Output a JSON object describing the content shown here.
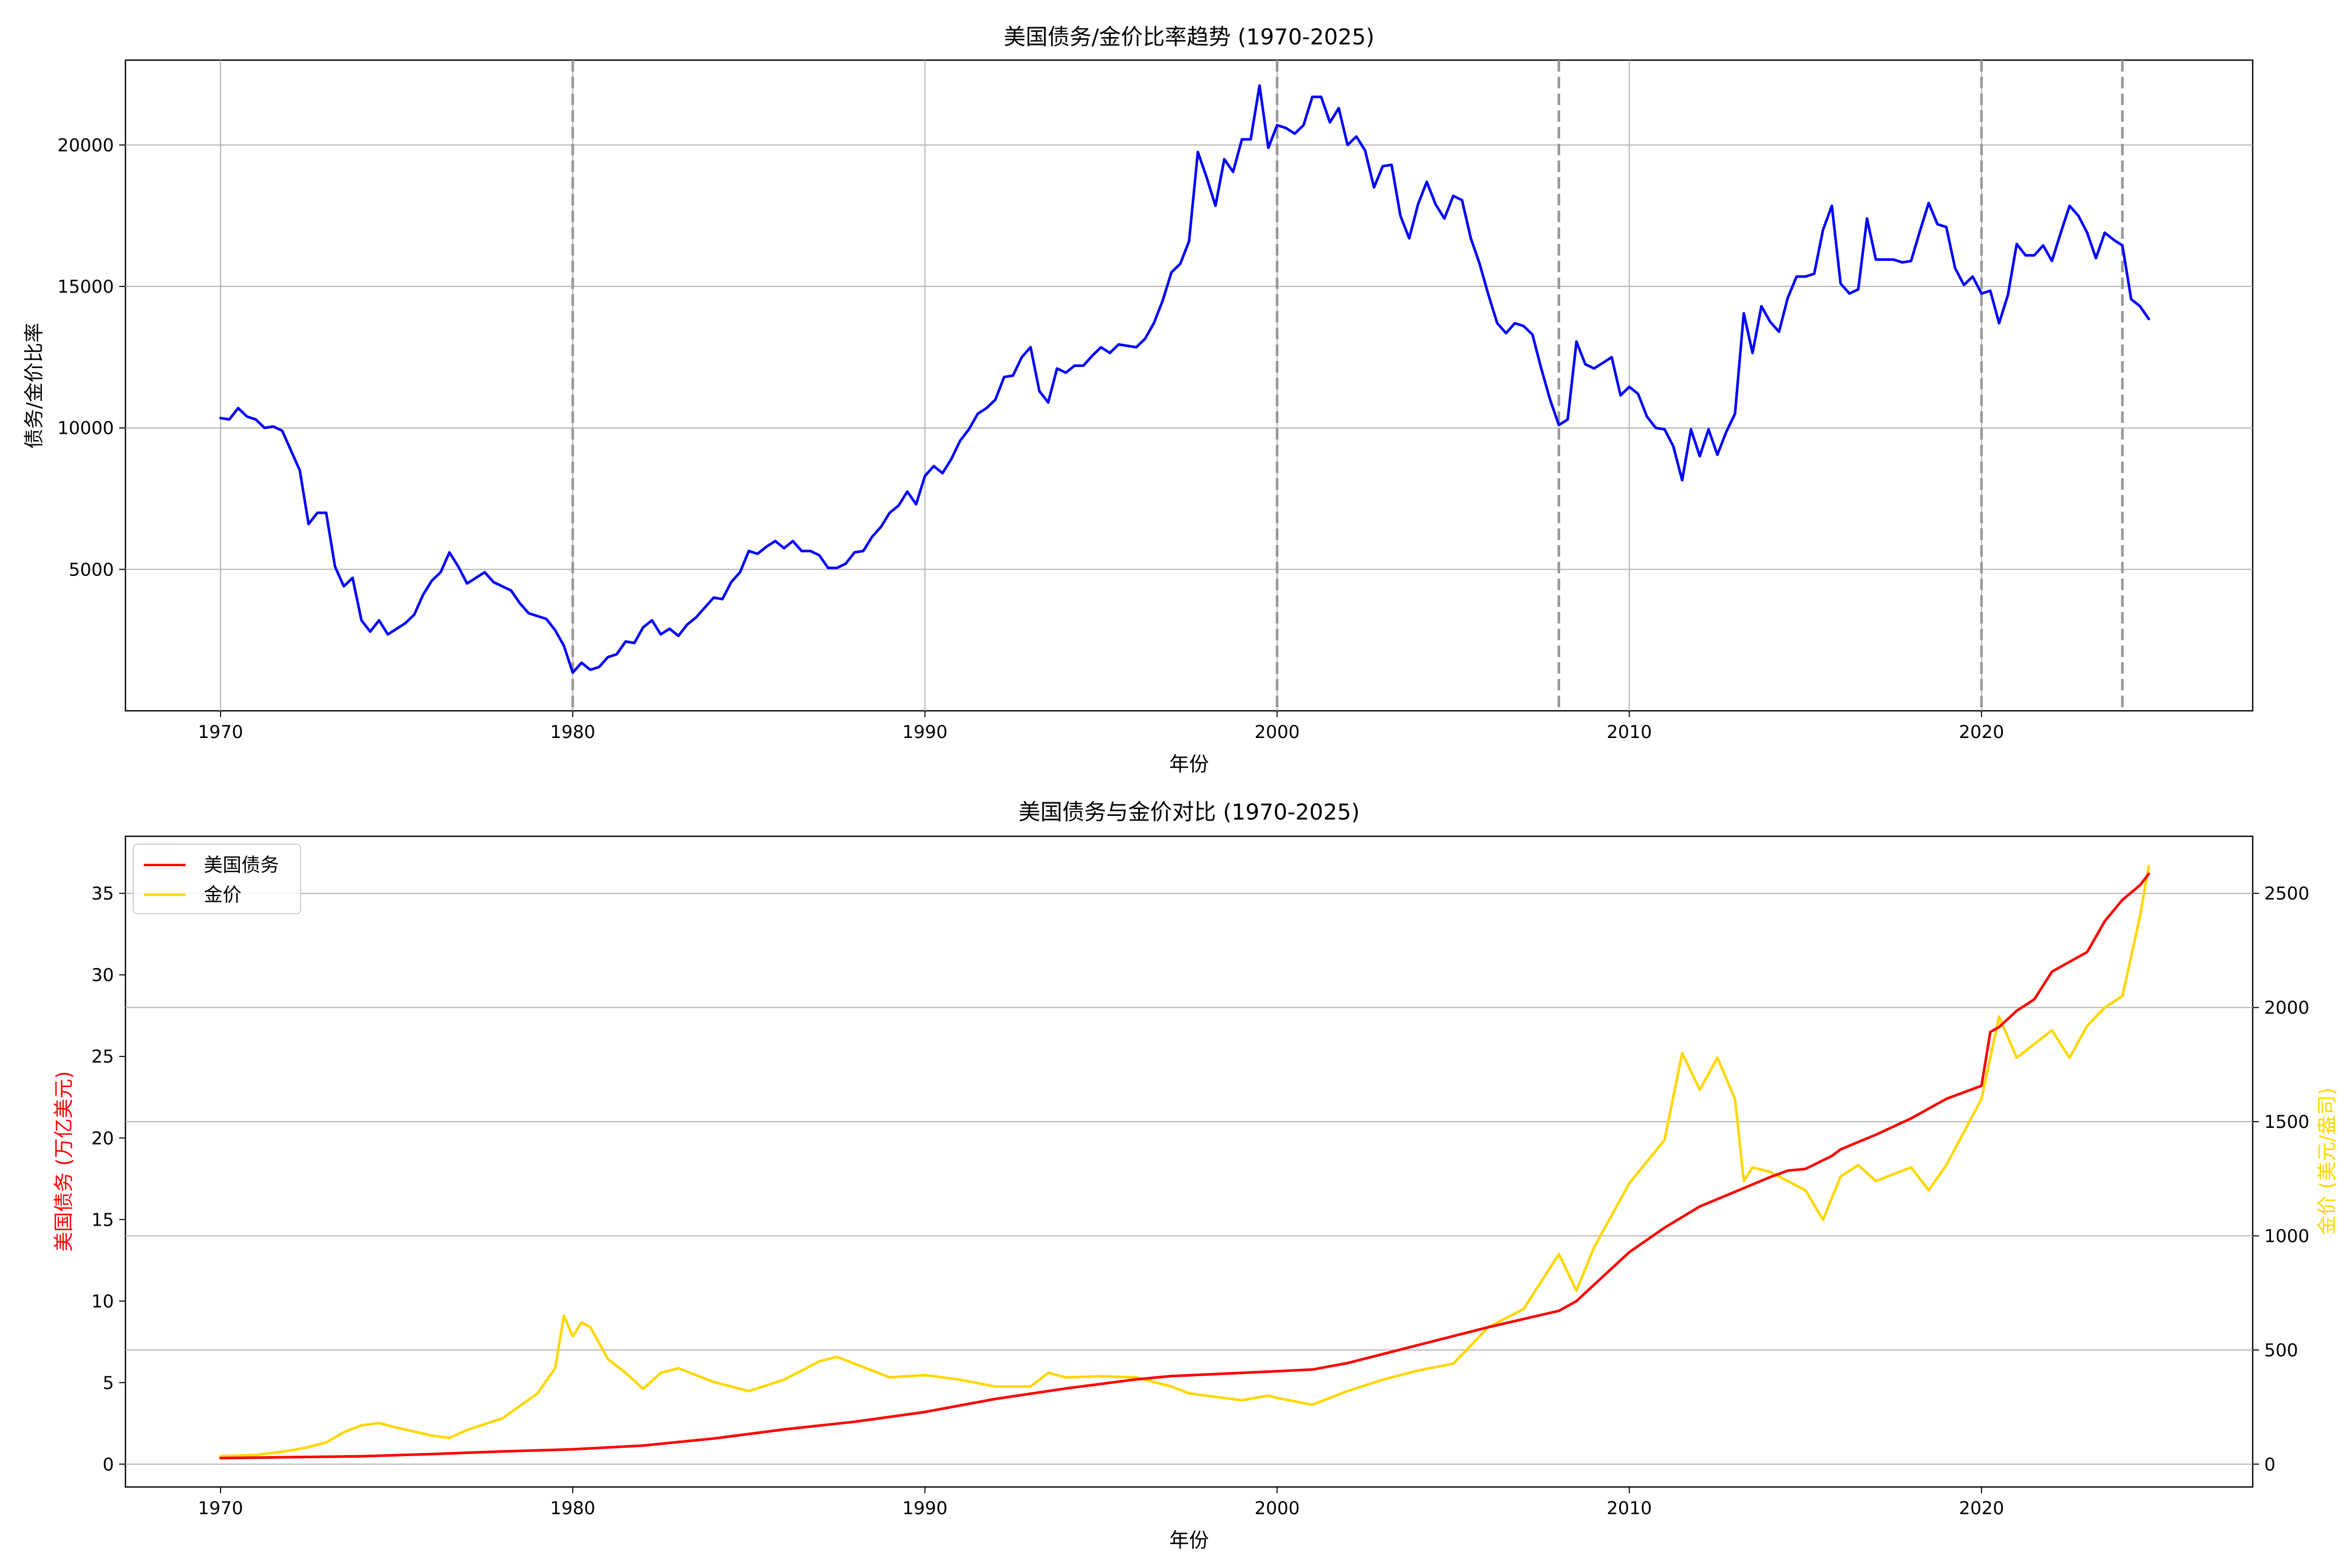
{
  "figure": {
    "background": "#ffffff"
  },
  "chart_data": [
    {
      "type": "line",
      "title": "美国债务/金价比率趋势 (1970-2025)",
      "xlabel": "年份",
      "ylabel": "债务/金价比率",
      "xlim": [
        1967.3,
        2027.7
      ],
      "ylim": [
        0,
        23000
      ],
      "x_ticks": [
        1970,
        1980,
        1990,
        2000,
        2010,
        2020
      ],
      "y_ticks": [
        5000,
        10000,
        15000,
        20000
      ],
      "grid": true,
      "vlines": [
        1980,
        2000,
        2008,
        2020,
        2024
      ],
      "vline_color": "#999999",
      "series": [
        {
          "color": "#0000ff",
          "x": [
            1970,
            1970.25,
            1970.5,
            1970.75,
            1971,
            1971.25,
            1971.5,
            1971.75,
            1972,
            1972.25,
            1972.5,
            1972.75,
            1973,
            1973.25,
            1973.5,
            1973.75,
            1974,
            1974.25,
            1974.5,
            1974.75,
            1975,
            1975.25,
            1975.5,
            1975.75,
            1976,
            1976.25,
            1976.5,
            1976.75,
            1977,
            1977.25,
            1977.5,
            1977.75,
            1978,
            1978.25,
            1978.5,
            1978.75,
            1979,
            1979.25,
            1979.5,
            1979.75,
            1980,
            1980.25,
            1980.5,
            1980.75,
            1981,
            1981.25,
            1981.5,
            1981.75,
            1982,
            1982.25,
            1982.5,
            1982.75,
            1983,
            1983.25,
            1983.5,
            1983.75,
            1984,
            1984.25,
            1984.5,
            1984.75,
            1985,
            1985.25,
            1985.5,
            1985.75,
            1986,
            1986.25,
            1986.5,
            1986.75,
            1987,
            1987.25,
            1987.5,
            1987.75,
            1988,
            1988.25,
            1988.5,
            1988.75,
            1989,
            1989.25,
            1989.5,
            1989.75,
            1990,
            1990.25,
            1990.5,
            1990.75,
            1991,
            1991.25,
            1991.5,
            1991.75,
            1992,
            1992.25,
            1992.5,
            1992.75,
            1993,
            1993.25,
            1993.5,
            1993.75,
            1994,
            1994.25,
            1994.5,
            1994.75,
            1995,
            1995.25,
            1995.5,
            1995.75,
            1996,
            1996.25,
            1996.5,
            1996.75,
            1997,
            1997.25,
            1997.5,
            1997.75,
            1998,
            1998.25,
            1998.5,
            1998.75,
            1999,
            1999.25,
            1999.5,
            1999.75,
            2000,
            2000.25,
            2000.5,
            2000.75,
            2001,
            2001.25,
            2001.5,
            2001.75,
            2002,
            2002.25,
            2002.5,
            2002.75,
            2003,
            2003.25,
            2003.5,
            2003.75,
            2004,
            2004.25,
            2004.5,
            2004.75,
            2005,
            2005.25,
            2005.5,
            2005.75,
            2006,
            2006.25,
            2006.5,
            2006.75,
            2007,
            2007.25,
            2007.5,
            2007.75,
            2008,
            2008.25,
            2008.5,
            2008.75,
            2009,
            2009.25,
            2009.5,
            2009.75,
            2010,
            2010.25,
            2010.5,
            2010.75,
            2011,
            2011.25,
            2011.5,
            2011.75,
            2012,
            2012.25,
            2012.5,
            2012.75,
            2013,
            2013.25,
            2013.5,
            2013.75,
            2014,
            2014.25,
            2014.5,
            2014.75,
            2015,
            2015.25,
            2015.5,
            2015.75,
            2016,
            2016.25,
            2016.5,
            2016.75,
            2017,
            2017.25,
            2017.5,
            2017.75,
            2018,
            2018.25,
            2018.5,
            2018.75,
            2019,
            2019.25,
            2019.5,
            2019.75,
            2020,
            2020.25,
            2020.5,
            2020.75,
            2021,
            2021.25,
            2021.5,
            2021.75,
            2022,
            2022.25,
            2022.5,
            2022.75,
            2023,
            2023.25,
            2023.5,
            2023.75,
            2024,
            2024.25,
            2024.5,
            2024.75
          ],
          "y": [
            10350,
            10300,
            10700,
            10400,
            10300,
            10000,
            10050,
            9900,
            9200,
            8500,
            6600,
            7000,
            7000,
            5100,
            4400,
            4700,
            3200,
            2800,
            3200,
            2700,
            2900,
            3100,
            3400,
            4100,
            4600,
            4900,
            5600,
            5100,
            4500,
            4700,
            4900,
            4550,
            4400,
            4250,
            3800,
            3450,
            3350,
            3250,
            2850,
            2300,
            1350,
            1700,
            1450,
            1550,
            1900,
            2000,
            2450,
            2400,
            2950,
            3200,
            2700,
            2900,
            2650,
            3050,
            3300,
            3650,
            4000,
            3950,
            4550,
            4900,
            5650,
            5550,
            5800,
            6000,
            5750,
            6000,
            5650,
            5650,
            5500,
            5050,
            5050,
            5200,
            5600,
            5650,
            6150,
            6500,
            7000,
            7250,
            7750,
            7300,
            8300,
            8650,
            8400,
            8900,
            9550,
            9950,
            10500,
            10700,
            11000,
            11800,
            11850,
            12500,
            12850,
            11300,
            10900,
            12100,
            11950,
            12200,
            12200,
            12550,
            12850,
            12650,
            12950,
            12900,
            12850,
            13150,
            13700,
            14500,
            15500,
            15800,
            16600,
            19750,
            18850,
            17850,
            19500,
            19050,
            20200,
            20200,
            22100,
            19900,
            20700,
            20600,
            20400,
            20700,
            21700,
            21700,
            20800,
            21300,
            20000,
            20300,
            19800,
            18500,
            19250,
            19300,
            17500,
            16700,
            17900,
            18700,
            17900,
            17400,
            18200,
            18050,
            16700,
            15800,
            14700,
            13700,
            13350,
            13700,
            13600,
            13300,
            12100,
            11000,
            10100,
            10300,
            13050,
            12250,
            12100,
            12300,
            12500,
            11150,
            11450,
            11200,
            10400,
            10000,
            9950,
            9350,
            8150,
            9950,
            9000,
            9950,
            9050,
            9850,
            10500,
            14050,
            12650,
            14300,
            13750,
            13400,
            14600,
            15350,
            15350,
            15450,
            17000,
            17850,
            15100,
            14750,
            14900,
            17400,
            15950,
            15950,
            15950,
            15850,
            15900,
            16950,
            17950,
            17200,
            17100,
            15650,
            15050,
            15350,
            14750,
            14850,
            13700,
            14700,
            16500,
            16100,
            16100,
            16450,
            15900,
            16900,
            17850,
            17500,
            16900,
            16000,
            16900,
            16650,
            16450,
            14550,
            14300,
            13850
          ]
        }
      ]
    },
    {
      "type": "line",
      "title": "美国债务与金价对比 (1970-2025)",
      "xlabel": "年份",
      "ylabel": "美国债务 (万亿美元)",
      "y2label": "金价 (美元/盎司)",
      "xlim": [
        1967.3,
        2027.7
      ],
      "ylim": [
        -1.4,
        38.5
      ],
      "y2lim": [
        -100,
        2750
      ],
      "x_ticks": [
        1970,
        1980,
        1990,
        2000,
        2010,
        2020
      ],
      "y_ticks": [
        0,
        5,
        10,
        15,
        20,
        25,
        30,
        35
      ],
      "y2_ticks": [
        0,
        500,
        1000,
        1500,
        2000,
        2500
      ],
      "grid": true,
      "legend": "top-left",
      "series": [
        {
          "name": "美国债务",
          "axis": "left",
          "color": "#ff0000",
          "x": [
            1970,
            1972,
            1974,
            1976,
            1978,
            1980,
            1982,
            1984,
            1986,
            1988,
            1990,
            1992,
            1994,
            1996,
            1997,
            1998,
            2000,
            2001,
            2002,
            2004,
            2006,
            2008,
            2008.5,
            2009,
            2010,
            2011,
            2012,
            2013,
            2014,
            2014.5,
            2015,
            2015.75,
            2016,
            2017,
            2018,
            2019,
            2019.75,
            2020,
            2020.25,
            2020.5,
            2021,
            2021.5,
            2022,
            2023,
            2023.5,
            2024,
            2024.5,
            2024.75
          ],
          "y": [
            0.37,
            0.43,
            0.48,
            0.62,
            0.78,
            0.91,
            1.14,
            1.57,
            2.13,
            2.6,
            3.2,
            4.0,
            4.64,
            5.2,
            5.4,
            5.5,
            5.7,
            5.8,
            6.2,
            7.3,
            8.4,
            9.4,
            10.0,
            11.0,
            13.0,
            14.5,
            15.8,
            16.7,
            17.6,
            18.0,
            18.1,
            18.9,
            19.3,
            20.2,
            21.2,
            22.4,
            23.0,
            23.2,
            26.5,
            26.8,
            27.8,
            28.5,
            30.2,
            31.4,
            33.3,
            34.6,
            35.5,
            36.2
          ]
        },
        {
          "name": "金价",
          "axis": "right",
          "color": "#ffd700",
          "x": [
            1970,
            1971,
            1972,
            1972.5,
            1973,
            1973.5,
            1974,
            1974.5,
            1975,
            1976,
            1976.5,
            1977,
            1978,
            1979,
            1979.5,
            1979.75,
            1980,
            1980.25,
            1980.5,
            1981,
            1981.5,
            1982,
            1982.5,
            1983,
            1983.5,
            1984,
            1985,
            1986,
            1987,
            1987.5,
            1988,
            1989,
            1990,
            1991,
            1992,
            1993,
            1993.5,
            1994,
            1995,
            1996,
            1997,
            1997.5,
            1998,
            1999,
            1999.75,
            2000,
            2001,
            2002,
            2003,
            2004,
            2005,
            2006,
            2007,
            2008,
            2008.5,
            2009,
            2010,
            2011,
            2011.5,
            2012,
            2012.5,
            2013,
            2013.25,
            2013.5,
            2014,
            2015,
            2015.5,
            2016,
            2016.5,
            2017,
            2018,
            2018.5,
            2019,
            2020,
            2020.5,
            2021,
            2022,
            2022.5,
            2023,
            2023.5,
            2024,
            2024.5,
            2024.75
          ],
          "y": [
            35,
            40,
            60,
            75,
            95,
            140,
            170,
            180,
            160,
            125,
            115,
            150,
            200,
            310,
            420,
            650,
            560,
            620,
            600,
            460,
            400,
            330,
            400,
            420,
            390,
            360,
            320,
            370,
            450,
            470,
            440,
            380,
            390,
            370,
            340,
            340,
            400,
            380,
            385,
            380,
            340,
            310,
            300,
            280,
            300,
            290,
            260,
            320,
            370,
            410,
            440,
            600,
            680,
            920,
            760,
            950,
            1230,
            1420,
            1800,
            1640,
            1780,
            1600,
            1240,
            1300,
            1280,
            1200,
            1070,
            1260,
            1310,
            1240,
            1300,
            1200,
            1310,
            1600,
            1960,
            1780,
            1900,
            1780,
            1920,
            2000,
            2050,
            2400,
            2620
          ]
        }
      ]
    }
  ]
}
